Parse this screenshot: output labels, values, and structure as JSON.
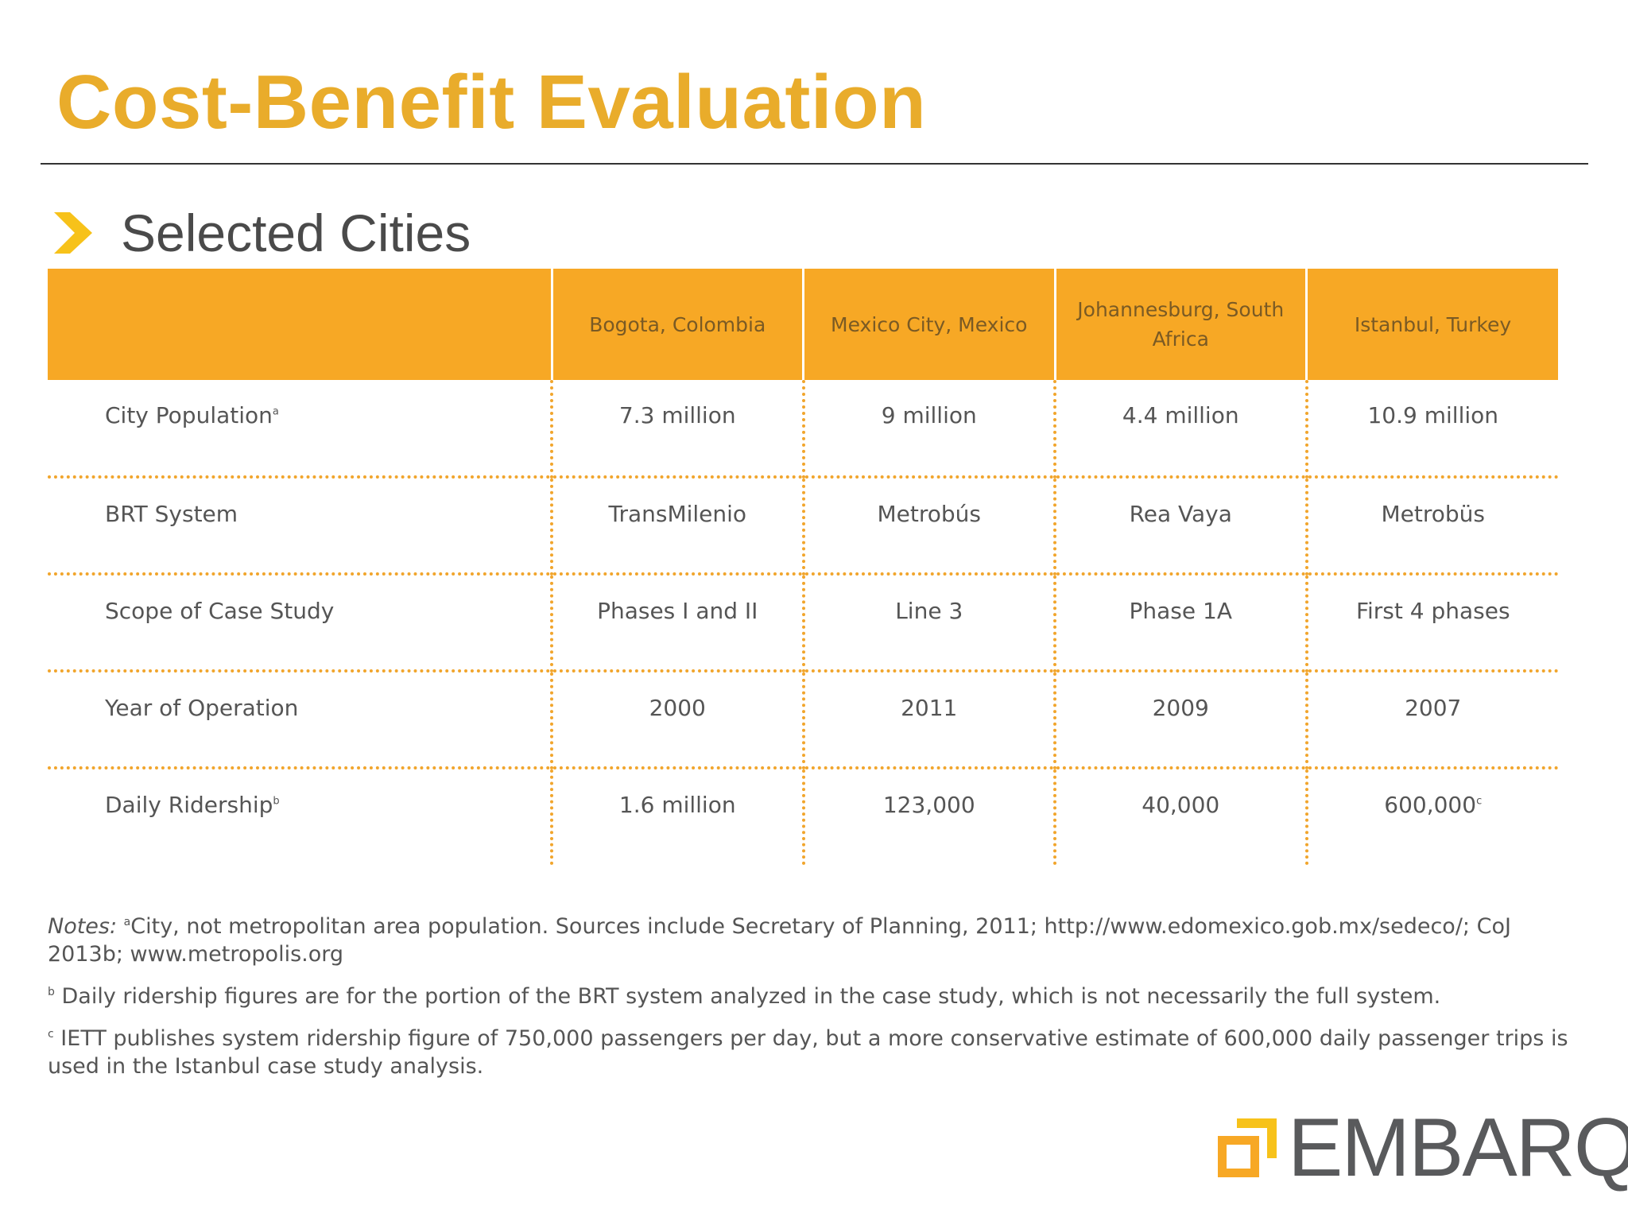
{
  "slide": {
    "title": "Cost-Benefit Evaluation",
    "subtitle": "Selected Cities"
  },
  "table": {
    "columns": [
      "Bogota, Colombia",
      "Mexico City, Mexico",
      "Johannesburg, South Africa",
      "Istanbul, Turkey"
    ],
    "rows": [
      {
        "label": "City Population",
        "label_sup": "a",
        "cells": [
          "7.3 million",
          "9 million",
          "4.4 million",
          "10.9 million"
        ]
      },
      {
        "label": "BRT System",
        "label_sup": "",
        "cells": [
          "TransMilenio",
          "Metrobús",
          "Rea Vaya",
          "Metrobüs"
        ]
      },
      {
        "label": "Scope of Case Study",
        "label_sup": "",
        "cells": [
          "Phases I and II",
          "Line 3",
          "Phase 1A",
          "First 4 phases"
        ]
      },
      {
        "label": "Year of Operation",
        "label_sup": "",
        "cells": [
          "2000",
          "2011",
          "2009",
          "2007"
        ]
      },
      {
        "label": "Daily Ridership",
        "label_sup": "b",
        "cells": [
          "1.6 million",
          "123,000",
          "40,000",
          "600,000"
        ],
        "last_cell_sup": "c"
      }
    ]
  },
  "notes": {
    "prefix": "Notes:",
    "a_marker": "a",
    "a_text": "City, not metropolitan area population. Sources include Secretary of Planning, 2011; http://www.edomexico.gob.mx/sedeco/; CoJ 2013b; www.metropolis.org",
    "b_marker": "b",
    "b_text": "Daily ridership figures are for the portion of the BRT system analyzed in the case study, which is not necessarily the full system.",
    "c_marker": "c",
    "c_text": "IETT publishes system ridership figure of 750,000 passengers per day, but a more conservative estimate of 600,000 daily passenger trips is used in the Istanbul case study analysis."
  },
  "logo": {
    "text": "EMBARQ",
    "registered": "®"
  },
  "colors": {
    "title": "#e9ac2b",
    "header_fill": "#f7a825",
    "dotted_rule": "#f1a52c",
    "body_text": "#555555",
    "logo_gray": "#595a5c"
  },
  "icons": {
    "bullet": "chevron-right-icon",
    "logo_mark": "embarq-squares-icon"
  }
}
